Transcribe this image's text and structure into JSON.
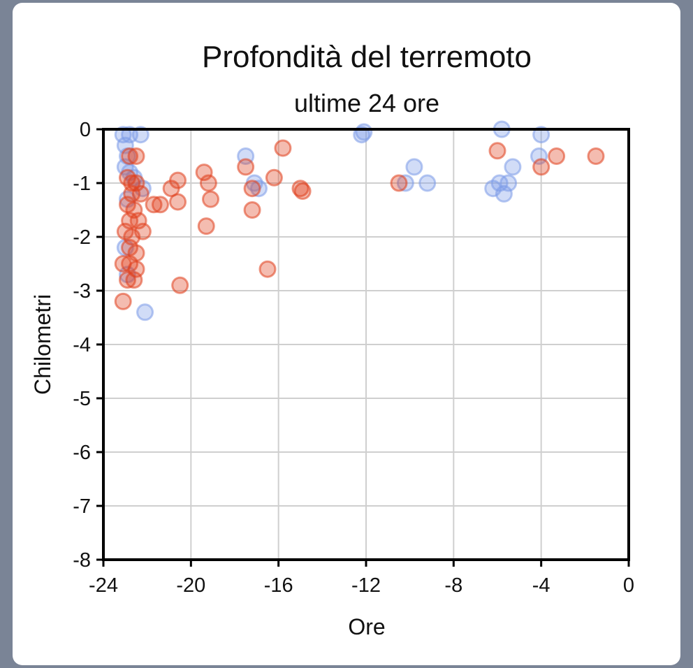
{
  "chart_data": {
    "type": "scatter",
    "title": "Profondità del terremoto",
    "subtitle": "ultime 24 ore",
    "xlabel": "Ore",
    "ylabel": "Chilometri",
    "xlim": [
      -24,
      0
    ],
    "ylim": [
      -8,
      0
    ],
    "xticks": [
      -24,
      -20,
      -16,
      -12,
      -8,
      -4,
      0
    ],
    "yticks": [
      0,
      -1,
      -2,
      -3,
      -4,
      -5,
      -6,
      -7,
      -8
    ],
    "grid": true,
    "series": [
      {
        "color": "#7b9be8",
        "points": [
          [
            -23.1,
            -0.1
          ],
          [
            -22.8,
            -0.1
          ],
          [
            -22.3,
            -0.1
          ],
          [
            -23.0,
            -0.3
          ],
          [
            -22.9,
            -0.5
          ],
          [
            -23.0,
            -0.7
          ],
          [
            -22.8,
            -0.8
          ],
          [
            -22.6,
            -0.9
          ],
          [
            -22.2,
            -1.1
          ],
          [
            -22.9,
            -1.3
          ],
          [
            -23.0,
            -2.2
          ],
          [
            -22.9,
            -2.7
          ],
          [
            -22.1,
            -3.4
          ],
          [
            -17.5,
            -0.5
          ],
          [
            -17.1,
            -1.0
          ],
          [
            -16.9,
            -1.1
          ],
          [
            -12.2,
            -0.1
          ],
          [
            -12.1,
            -0.05
          ],
          [
            -10.2,
            -1.0
          ],
          [
            -9.8,
            -0.7
          ],
          [
            -9.2,
            -1.0
          ],
          [
            -5.8,
            0.0
          ],
          [
            -4.0,
            -0.1
          ],
          [
            -4.1,
            -0.5
          ],
          [
            -5.3,
            -0.7
          ],
          [
            -6.2,
            -1.1
          ],
          [
            -5.9,
            -1.0
          ],
          [
            -5.7,
            -1.2
          ],
          [
            -5.5,
            -1.0
          ]
        ]
      },
      {
        "color": "#e0401e",
        "points": [
          [
            -22.8,
            -0.5
          ],
          [
            -22.5,
            -0.5
          ],
          [
            -22.9,
            -0.9
          ],
          [
            -22.7,
            -1.0
          ],
          [
            -22.5,
            -1.0
          ],
          [
            -22.7,
            -1.2
          ],
          [
            -22.3,
            -1.2
          ],
          [
            -22.9,
            -1.4
          ],
          [
            -22.6,
            -1.5
          ],
          [
            -22.8,
            -1.7
          ],
          [
            -22.4,
            -1.7
          ],
          [
            -23.0,
            -1.9
          ],
          [
            -22.7,
            -2.0
          ],
          [
            -22.2,
            -1.9
          ],
          [
            -22.8,
            -2.2
          ],
          [
            -22.5,
            -2.3
          ],
          [
            -23.1,
            -2.5
          ],
          [
            -22.8,
            -2.5
          ],
          [
            -22.5,
            -2.6
          ],
          [
            -22.9,
            -2.8
          ],
          [
            -22.6,
            -2.8
          ],
          [
            -23.1,
            -3.2
          ],
          [
            -21.7,
            -1.4
          ],
          [
            -21.4,
            -1.4
          ],
          [
            -20.9,
            -1.1
          ],
          [
            -20.6,
            -0.95
          ],
          [
            -20.6,
            -1.35
          ],
          [
            -20.5,
            -2.9
          ],
          [
            -19.4,
            -0.8
          ],
          [
            -19.2,
            -1.0
          ],
          [
            -19.1,
            -1.3
          ],
          [
            -19.3,
            -1.8
          ],
          [
            -17.5,
            -0.7
          ],
          [
            -17.2,
            -1.1
          ],
          [
            -17.2,
            -1.5
          ],
          [
            -16.2,
            -0.9
          ],
          [
            -15.8,
            -0.35
          ],
          [
            -16.5,
            -2.6
          ],
          [
            -15.0,
            -1.1
          ],
          [
            -14.9,
            -1.15
          ],
          [
            -10.5,
            -1.0
          ],
          [
            -6.0,
            -0.4
          ],
          [
            -4.0,
            -0.7
          ],
          [
            -3.3,
            -0.5
          ],
          [
            -1.5,
            -0.5
          ]
        ]
      }
    ]
  }
}
